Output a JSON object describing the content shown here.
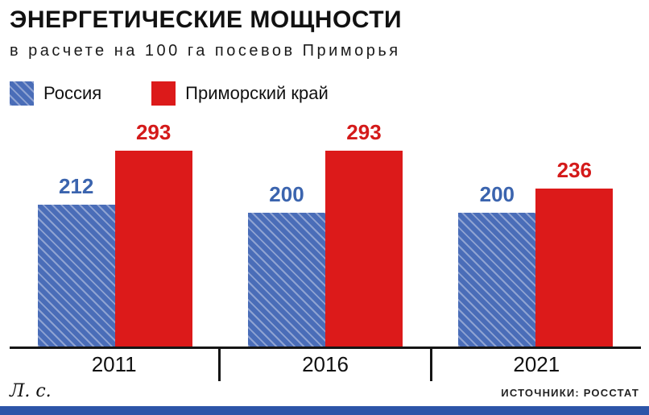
{
  "header": {
    "title": "ЭНЕРГЕТИЧЕСКИЕ МОЩНОСТИ",
    "subtitle": "в расчете на 100 га посевов Приморья"
  },
  "chart_data": {
    "type": "bar",
    "title": "ЭНЕРГЕТИЧЕСКИЕ МОЩНОСТИ",
    "subtitle": "в расчете на 100 га посевов Приморья",
    "categories": [
      "2011",
      "2016",
      "2021"
    ],
    "series": [
      {
        "name": "Россия",
        "values": [
          212,
          200,
          200
        ],
        "color": "#4a6db8",
        "pattern": "diagonal-hatch"
      },
      {
        "name": "Приморский край",
        "values": [
          293,
          293,
          236
        ],
        "color": "#dc1a1a",
        "pattern": "solid"
      }
    ],
    "xlabel": "",
    "ylabel": "Л. с.",
    "ylim": [
      0,
      310
    ],
    "grid": false,
    "value_labels": true,
    "legend_position": "top"
  },
  "footer": {
    "unit_label": "Л. с.",
    "source": "ИСТОЧНИКИ: РОССТАТ"
  },
  "colors": {
    "russia_blue": "#4a6db8",
    "kray_red": "#dc1a1a",
    "value_blue": "#3b64ae",
    "value_red": "#d41a1a",
    "footer_bar_blue": "#2d55a8",
    "axis_black": "#151515"
  }
}
